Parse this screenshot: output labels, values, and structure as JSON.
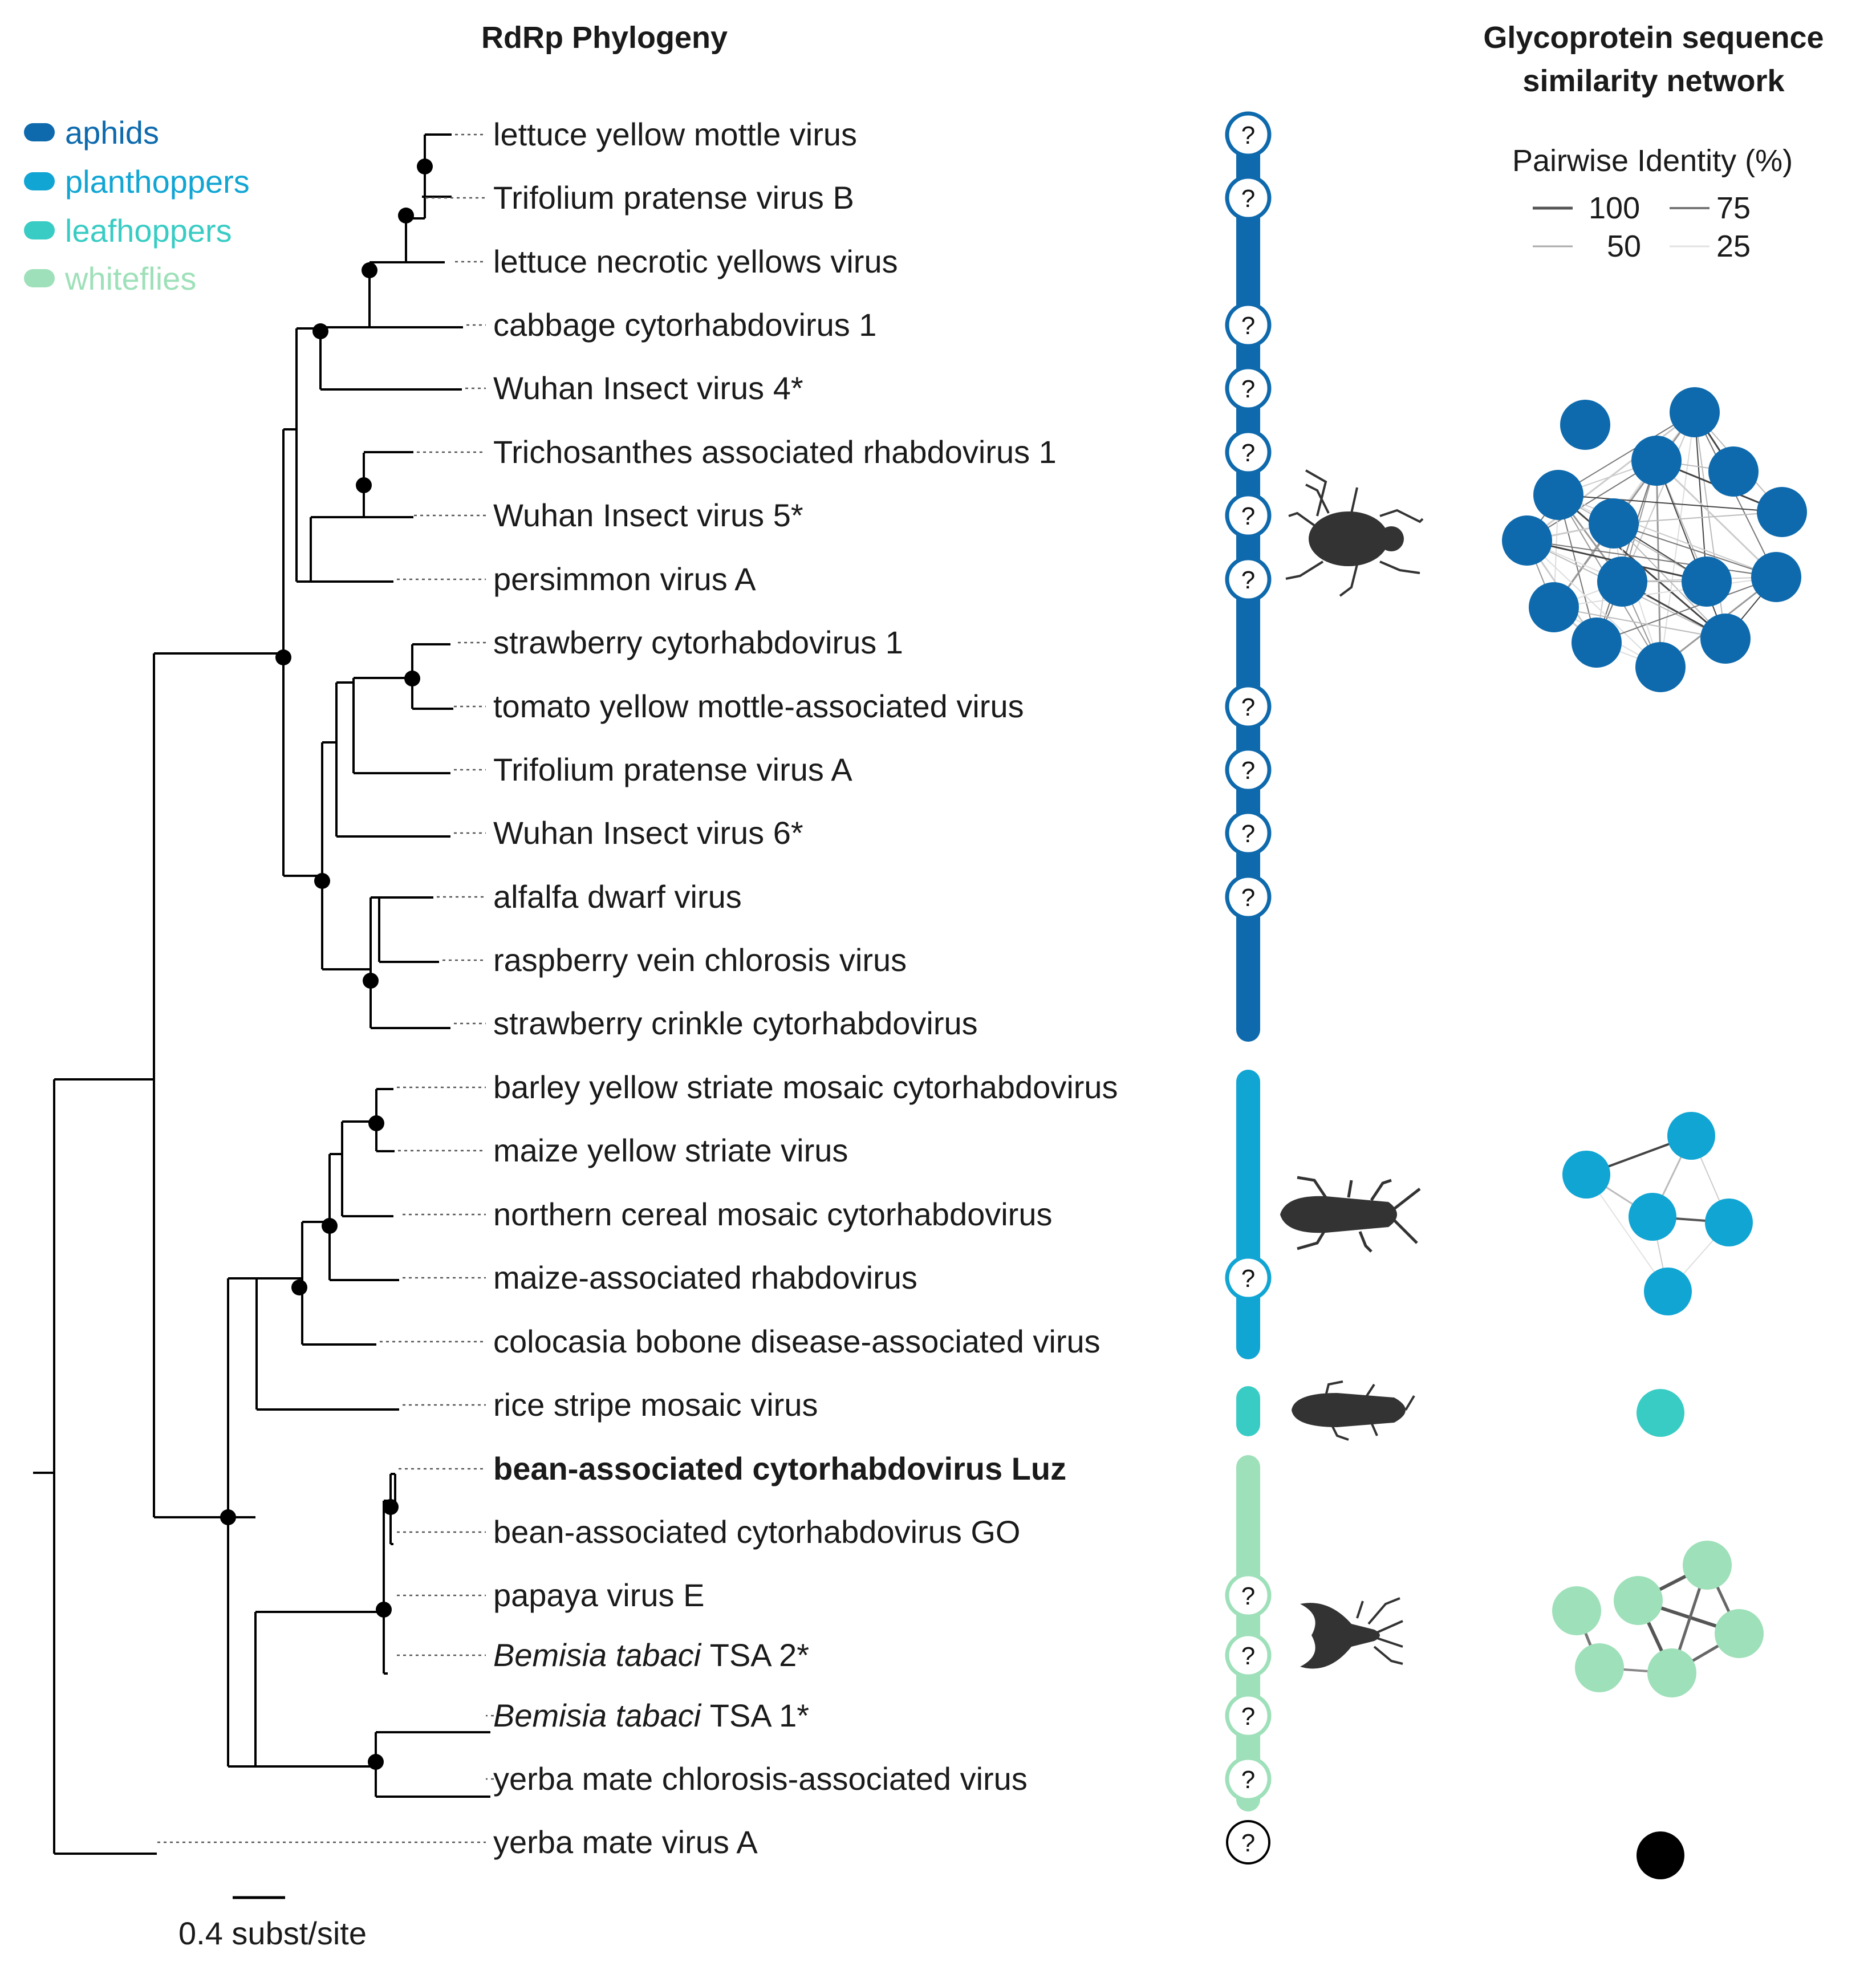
{
  "titles": {
    "phylogeny": "RdRp Phylogeny",
    "network_line1": "Glycoprotein sequence",
    "network_line2": "similarity network"
  },
  "legend": [
    {
      "label": "aphids",
      "color": "#0e6aad"
    },
    {
      "label": "planthoppers",
      "color": "#11a5d4"
    },
    {
      "label": "leafhoppers",
      "color": "#39ccc4"
    },
    {
      "label": "whiteflies",
      "color": "#9ee0b9"
    }
  ],
  "pairwise": {
    "title": "Pairwise Identity (%)",
    "values": [
      "100",
      "75",
      "50",
      "25"
    ]
  },
  "taxa": [
    {
      "name": "lettuce yellow mottle virus",
      "q": true
    },
    {
      "name": "Trifolium pratense virus B",
      "q": true
    },
    {
      "name": "lettuce necrotic yellows virus",
      "q": false
    },
    {
      "name": "cabbage cytorhabdovirus 1",
      "q": true
    },
    {
      "name": "Wuhan Insect virus 4*",
      "q": true
    },
    {
      "name": "Trichosanthes associated rhabdovirus 1",
      "q": true
    },
    {
      "name": "Wuhan Insect virus 5*",
      "q": true
    },
    {
      "name": "persimmon virus A",
      "q": true
    },
    {
      "name": "strawberry cytorhabdovirus 1",
      "q": false
    },
    {
      "name": "tomato yellow mottle-associated virus",
      "q": true
    },
    {
      "name": "Trifolium pratense virus A",
      "q": true
    },
    {
      "name": "Wuhan Insect virus 6*",
      "q": true
    },
    {
      "name": "alfalfa dwarf virus",
      "q": true
    },
    {
      "name": "raspberry vein chlorosis virus",
      "q": false
    },
    {
      "name": "strawberry crinkle cytorhabdovirus",
      "q": false
    },
    {
      "name": "barley yellow striate mosaic cytorhabdovirus",
      "q": false
    },
    {
      "name": "maize yellow striate virus",
      "q": false
    },
    {
      "name": "northern cereal mosaic cytorhabdovirus",
      "q": false
    },
    {
      "name": "maize-associated rhabdovirus",
      "q": true
    },
    {
      "name": "colocasia bobone disease-associated virus",
      "q": false
    },
    {
      "name": "rice stripe mosaic virus",
      "q": false
    },
    {
      "name": "bean-associated cytorhabdovirus Luz",
      "q": false,
      "bold": true
    },
    {
      "name": "bean-associated cytorhabdovirus GO",
      "q": false
    },
    {
      "name": "papaya virus E",
      "q": true
    },
    {
      "name": "TSA 2*",
      "italic_prefix": "Bemisia tabaci",
      "q": true
    },
    {
      "name": "TSA 1*",
      "italic_prefix": "Bemisia tabaci",
      "q": true
    },
    {
      "name": "yerba mate chlorosis-associated virus",
      "q": true
    },
    {
      "name": "yerba mate virus A",
      "q": true
    }
  ],
  "question_mark": "?",
  "scale_bar": "0.4 subst/site",
  "icons": [
    "aphid-icon",
    "planthopper-icon",
    "leafhopper-icon",
    "whitefly-icon"
  ],
  "outgroup_color": "#000000"
}
